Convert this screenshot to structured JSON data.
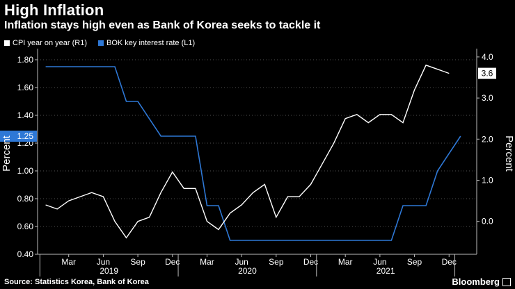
{
  "header": {
    "title": "High Inflation",
    "subtitle": "Inflation stays high even as Bank of Korea seeks to tackle it"
  },
  "footer": {
    "source": "Source: Statistics Korea, Bank of Korea",
    "brand": "Bloomberg"
  },
  "colors": {
    "background": "#000000",
    "cpi": "#ffffff",
    "bok": "#2e78d6",
    "grid": "#6a6a6a"
  },
  "chart_data": {
    "type": "line",
    "grid": "dashed",
    "legend_placement": "top-left",
    "y_left": {
      "label": "Percent",
      "ylim": [
        0.4,
        1.85
      ],
      "ticks": [
        "0.40",
        "0.60",
        "0.80",
        "1.00",
        "1.20",
        "1.40",
        "1.60",
        "1.80"
      ]
    },
    "y_right": {
      "label": "Percent",
      "ylim": [
        -0.8,
        4.1
      ],
      "ticks": [
        "0.0",
        "1.0",
        "2.0",
        "3.0",
        "4.0"
      ]
    },
    "x_ticks": [
      "Mar",
      "Jun",
      "Sep",
      "Dec",
      "Mar",
      "Jun",
      "Sep",
      "Dec",
      "Mar",
      "Jun",
      "Sep",
      "Dec"
    ],
    "x_years": [
      "2019",
      "2020",
      "2021"
    ],
    "x": [
      "Jan 2019",
      "Feb 2019",
      "Mar 2019",
      "Apr 2019",
      "May 2019",
      "Jun 2019",
      "Jul 2019",
      "Aug 2019",
      "Sep 2019",
      "Oct 2019",
      "Nov 2019",
      "Dec 2019",
      "Jan 2020",
      "Feb 2020",
      "Mar 2020",
      "Apr 2020",
      "May 2020",
      "Jun 2020",
      "Jul 2020",
      "Aug 2020",
      "Sep 2020",
      "Oct 2020",
      "Nov 2020",
      "Dec 2020",
      "Jan 2021",
      "Feb 2021",
      "Mar 2021",
      "Apr 2021",
      "May 2021",
      "Jun 2021",
      "Jul 2021",
      "Aug 2021",
      "Sep 2021",
      "Oct 2021",
      "Nov 2021",
      "Dec 2021",
      "Jan 2022"
    ],
    "series": [
      {
        "name": "CPI year on year (R1)",
        "axis": "right",
        "end_label": "3.6",
        "values": [
          {
            "x": "Jan 2019",
            "y": 0.4
          },
          {
            "x": "Feb 2019",
            "y": 0.3
          },
          {
            "x": "Mar 2019",
            "y": 0.5
          },
          {
            "x": "Apr 2019",
            "y": 0.6
          },
          {
            "x": "May 2019",
            "y": 0.7
          },
          {
            "x": "Jun 2019",
            "y": 0.6
          },
          {
            "x": "Jul 2019",
            "y": 0.0
          },
          {
            "x": "Aug 2019",
            "y": -0.4
          },
          {
            "x": "Sep 2019",
            "y": 0.0
          },
          {
            "x": "Oct 2019",
            "y": 0.1
          },
          {
            "x": "Nov 2019",
            "y": 0.7
          },
          {
            "x": "Dec 2019",
            "y": 1.2
          },
          {
            "x": "Jan 2020",
            "y": 0.8
          },
          {
            "x": "Feb 2020",
            "y": 0.8
          },
          {
            "x": "Mar 2020",
            "y": 0.0
          },
          {
            "x": "Apr 2020",
            "y": -0.2
          },
          {
            "x": "May 2020",
            "y": 0.2
          },
          {
            "x": "Jun 2020",
            "y": 0.4
          },
          {
            "x": "Jul 2020",
            "y": 0.7
          },
          {
            "x": "Aug 2020",
            "y": 0.9
          },
          {
            "x": "Sep 2020",
            "y": 0.1
          },
          {
            "x": "Oct 2020",
            "y": 0.6
          },
          {
            "x": "Nov 2020",
            "y": 0.6
          },
          {
            "x": "Dec 2020",
            "y": 0.9
          },
          {
            "x": "Jan 2021",
            "y": 1.4
          },
          {
            "x": "Feb 2021",
            "y": 1.9
          },
          {
            "x": "Mar 2021",
            "y": 2.5
          },
          {
            "x": "Apr 2021",
            "y": 2.6
          },
          {
            "x": "May 2021",
            "y": 2.4
          },
          {
            "x": "Jun 2021",
            "y": 2.6
          },
          {
            "x": "Jul 2021",
            "y": 2.6
          },
          {
            "x": "Aug 2021",
            "y": 2.4
          },
          {
            "x": "Sep 2021",
            "y": 3.2
          },
          {
            "x": "Oct 2021",
            "y": 3.8
          },
          {
            "x": "Nov 2021",
            "y": 3.7
          },
          {
            "x": "Dec 2021",
            "y": 3.6
          }
        ]
      },
      {
        "name": "BOK key interest rate (L1)",
        "axis": "left",
        "end_label": "1.25",
        "values": [
          {
            "x": "Jan 2019",
            "y": 1.75
          },
          {
            "x": "Jul 2019",
            "y": 1.75
          },
          {
            "x": "Aug 2019",
            "y": 1.5
          },
          {
            "x": "Sep 2019",
            "y": 1.5
          },
          {
            "x": "Nov 2019",
            "y": 1.25
          },
          {
            "x": "Feb 2020",
            "y": 1.25
          },
          {
            "x": "Mar 2020",
            "y": 0.75
          },
          {
            "x": "Apr 2020",
            "y": 0.75
          },
          {
            "x": "May 2020",
            "y": 0.5
          },
          {
            "x": "Jul 2021",
            "y": 0.5
          },
          {
            "x": "Aug 2021",
            "y": 0.75
          },
          {
            "x": "Oct 2021",
            "y": 0.75
          },
          {
            "x": "Nov 2021",
            "y": 1.0
          },
          {
            "x": "Jan 2022",
            "y": 1.25
          }
        ]
      }
    ]
  }
}
